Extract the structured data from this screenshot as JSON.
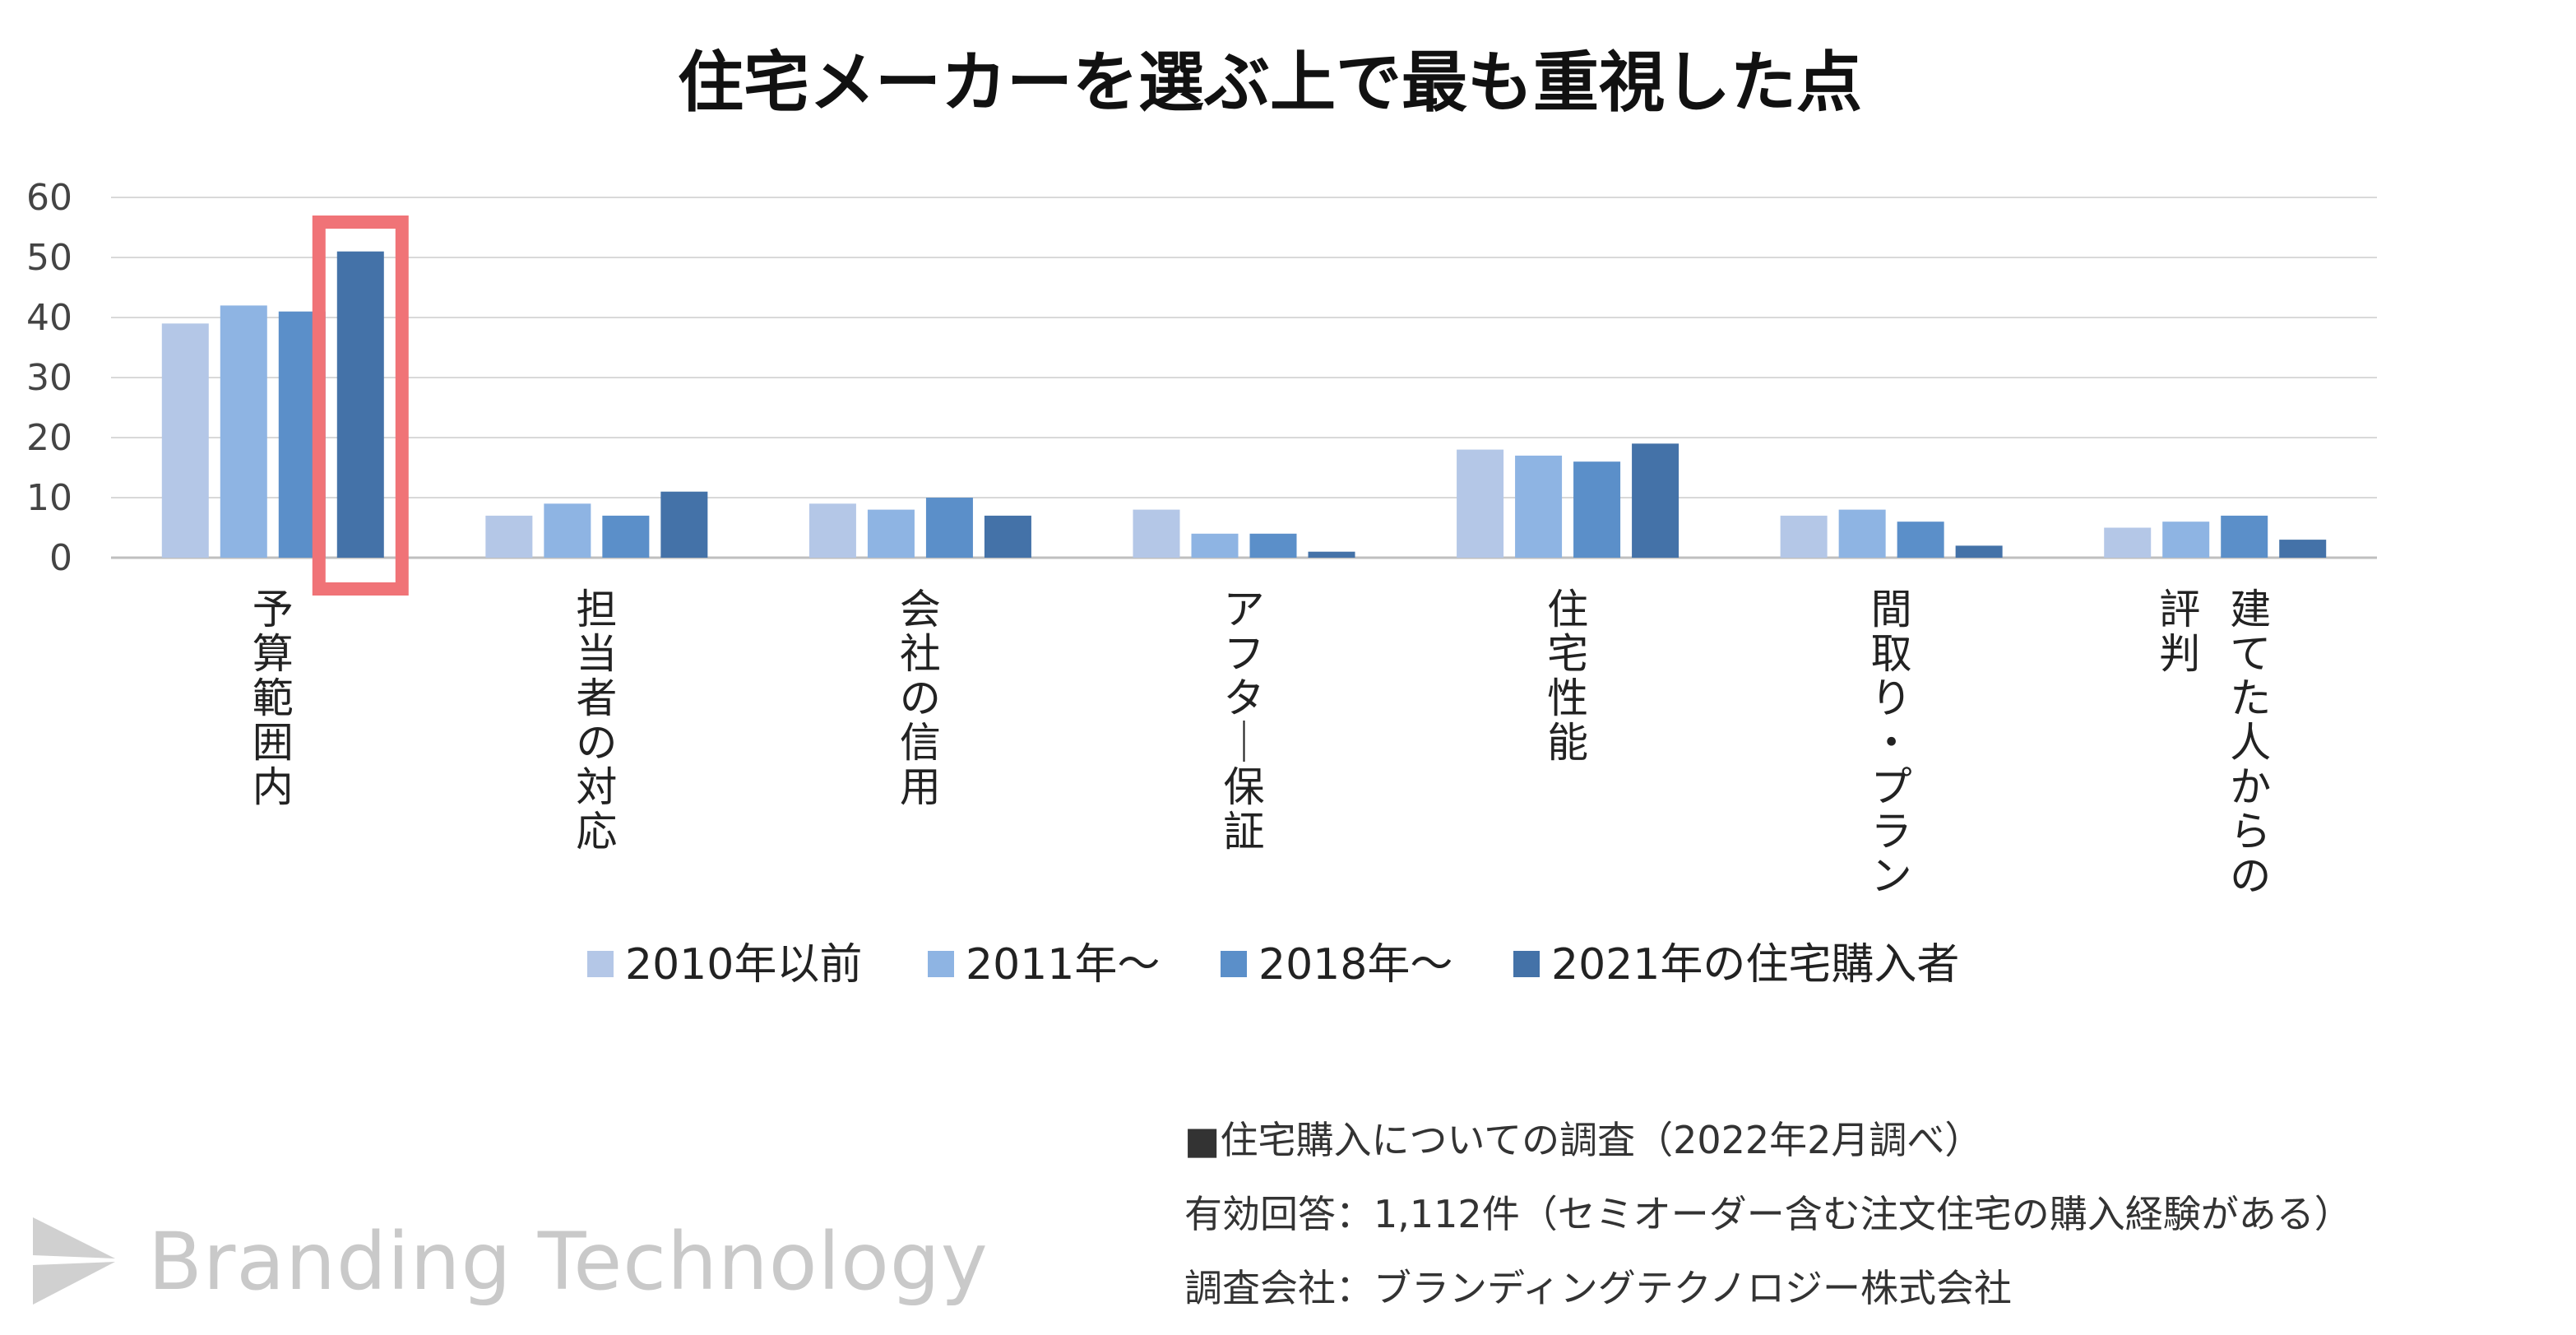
{
  "chart_data": {
    "type": "bar",
    "title": "住宅メーカーを選ぶ上で最も重視した点",
    "categories": [
      "予算範囲内",
      "担当者の対応",
      "会社の信用",
      "アフター保証",
      "住宅性能",
      "間取り・プラン",
      "建てた人からの評判"
    ],
    "category_label_columns": [
      [
        "予算範囲内"
      ],
      [
        "担当者の対応"
      ],
      [
        "会社の信用"
      ],
      [
        "アフター保証"
      ],
      [
        "住宅性能"
      ],
      [
        "間取り・プラン"
      ],
      [
        "建てた人からの",
        "評判"
      ]
    ],
    "series": [
      {
        "name": "2010年以前",
        "color": "#b4c7e7",
        "values": [
          39,
          7,
          9,
          8,
          18,
          7,
          5
        ]
      },
      {
        "name": "2011年〜",
        "color": "#8eb4e3",
        "values": [
          42,
          9,
          8,
          4,
          17,
          8,
          6
        ]
      },
      {
        "name": "2018年〜",
        "color": "#5b8fc9",
        "values": [
          41,
          7,
          10,
          4,
          16,
          6,
          7
        ]
      },
      {
        "name": "2021年の住宅購入者",
        "color": "#4472a8",
        "values": [
          51,
          11,
          7,
          1,
          19,
          2,
          3
        ]
      }
    ],
    "ylim": [
      0,
      60
    ],
    "yticks": [
      0,
      10,
      20,
      30,
      40,
      50,
      60
    ],
    "grid": true,
    "legend": "bottom",
    "highlight": {
      "category": "予算範囲内",
      "series": "2021年の住宅購入者",
      "color": "#f07377"
    },
    "xlabel": "",
    "ylabel": ""
  },
  "notes": [
    "■住宅購入についての調査（2022年2月調べ）",
    "有効回答：1,112件（セミオーダー含む注文住宅の購入経験がある）",
    "調査会社：ブランディングテクノロジー株式会社"
  ],
  "logo": {
    "text": "Branding Technology",
    "color": "#c9c9c9"
  }
}
